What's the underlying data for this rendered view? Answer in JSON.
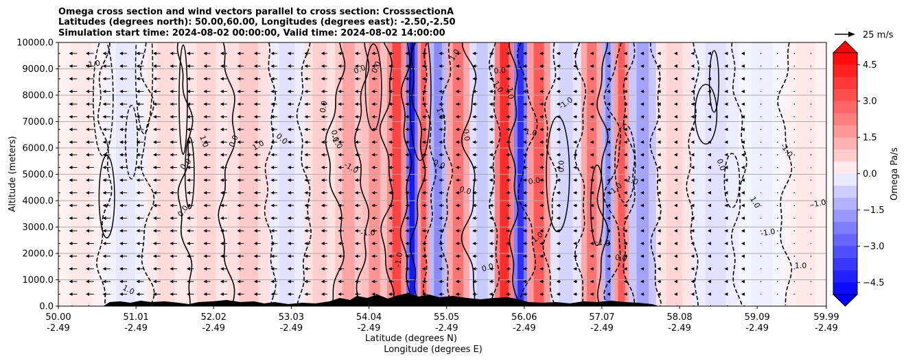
{
  "chart_data": {
    "type": "contour",
    "title_lines": [
      "Omega cross section and wind vectors parallel to cross section: CrosssectionA",
      "Latitudes (degrees north): 50.00,60.00, Longitudes (degrees east): -2.50,-2.50",
      "Simulation start time: 2024-08-02 00:00:00, Valid time: 2024-08-02 14:00:00"
    ],
    "ylabel": "Altitude (meters)",
    "xlabel_1": "Latitude (degrees N)",
    "xlabel_2": "Longitude (degrees E)",
    "ylim": [
      0,
      10000
    ],
    "y_ticks": [
      "0.0",
      "1000.0",
      "2000.0",
      "3000.0",
      "4000.0",
      "5000.0",
      "6000.0",
      "7000.0",
      "8000.0",
      "9000.0",
      "10000.0"
    ],
    "x_ticks_lat": [
      "50.00",
      "51.01",
      "52.02",
      "53.03",
      "54.04",
      "55.05",
      "56.06",
      "57.07",
      "58.08",
      "59.09",
      "59.99"
    ],
    "x_ticks_lon": [
      "-2.49",
      "-2.49",
      "-2.49",
      "-2.49",
      "-2.49",
      "-2.49",
      "-2.49",
      "-2.49",
      "-2.49",
      "-2.49",
      "-2.49"
    ],
    "x_tick_values": [
      50.0,
      51.01,
      52.02,
      53.03,
      54.04,
      55.05,
      56.06,
      57.07,
      58.08,
      59.09,
      59.99
    ],
    "xlim": [
      50.0,
      59.99
    ],
    "colorbar": {
      "label": "Omega Pa/s",
      "ticks": [
        "4.5",
        "3.0",
        "1.5",
        "0.0",
        "−1.5",
        "−3.0",
        "−4.5"
      ],
      "tick_values": [
        4.5,
        3.0,
        1.5,
        0.0,
        -1.5,
        -3.0,
        -4.5
      ],
      "range": [
        -5,
        5
      ],
      "levels": 20
    },
    "quiver_key": {
      "label": "25 m/s"
    },
    "contour_labels": [
      "0.0",
      "1.0",
      "-1.0"
    ],
    "bands": [
      {
        "lat": 50.3,
        "omega": 0.3
      },
      {
        "lat": 50.9,
        "omega": -0.3
      },
      {
        "lat": 51.4,
        "omega": 0.5
      },
      {
        "lat": 51.9,
        "omega": 0.6
      },
      {
        "lat": 52.5,
        "omega": 0.8
      },
      {
        "lat": 53.0,
        "omega": -0.4
      },
      {
        "lat": 53.4,
        "omega": 0.7
      },
      {
        "lat": 53.8,
        "omega": 1.5
      },
      {
        "lat": 54.1,
        "omega": 1.8
      },
      {
        "lat": 54.45,
        "omega": 3.5
      },
      {
        "lat": 54.6,
        "omega": -4.5
      },
      {
        "lat": 54.75,
        "omega": 3.0
      },
      {
        "lat": 54.9,
        "omega": -2.0
      },
      {
        "lat": 55.2,
        "omega": 2.5
      },
      {
        "lat": 55.5,
        "omega": -0.8
      },
      {
        "lat": 55.85,
        "omega": 4.0
      },
      {
        "lat": 56.0,
        "omega": -4.0
      },
      {
        "lat": 56.2,
        "omega": 3.0
      },
      {
        "lat": 56.6,
        "omega": -0.6
      },
      {
        "lat": 57.0,
        "omega": 2.5
      },
      {
        "lat": 57.15,
        "omega": -2.0
      },
      {
        "lat": 57.3,
        "omega": 3.0
      },
      {
        "lat": 57.55,
        "omega": -1.5
      },
      {
        "lat": 58.0,
        "omega": 0.6
      },
      {
        "lat": 58.5,
        "omega": -0.4
      },
      {
        "lat": 59.2,
        "omega": -0.2
      },
      {
        "lat": 59.7,
        "omega": 0.3
      }
    ]
  }
}
